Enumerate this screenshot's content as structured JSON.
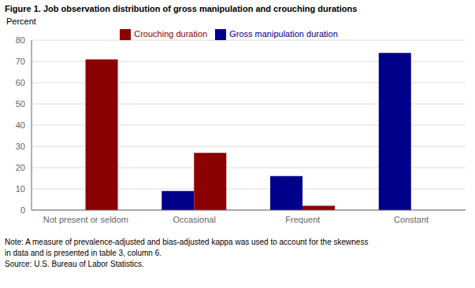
{
  "chart_data": {
    "type": "bar",
    "title": "Figure 1. Job observation distribution of gross manipulation and crouching durations",
    "ylabel": "Percent",
    "categories": [
      "Not present or seldom",
      "Occasional",
      "Frequent",
      "Constant"
    ],
    "series": [
      {
        "name": "Gross manipulation duration",
        "color": "#00008B",
        "values": [
          0,
          9,
          16,
          74
        ]
      },
      {
        "name": "Crouching duration",
        "color": "#8B0000",
        "values": [
          71,
          27,
          2,
          0
        ]
      }
    ],
    "ylim": [
      0,
      80
    ],
    "yticks": [
      0,
      10,
      20,
      30,
      40,
      50,
      60,
      70,
      80
    ],
    "grid": true,
    "legend": "upper center",
    "annotations": [
      "Note: A measure of prevalence-adjusted and bias-adjusted kappa was used to account for the skewness",
      "in data and is presented in table 3, column 6.",
      "Source: U.S. Bureau of Labor Statistics."
    ]
  }
}
